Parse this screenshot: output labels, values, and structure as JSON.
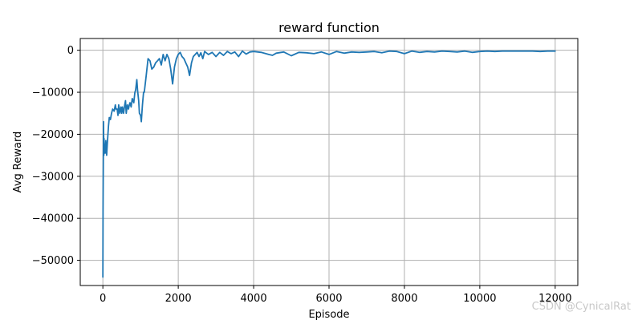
{
  "chart_data": {
    "type": "line",
    "title": "reward function",
    "xlabel": "Episode",
    "ylabel": "Avg Reward",
    "xlim": [
      -600,
      12600
    ],
    "ylim": [
      -56000,
      2800
    ],
    "xticks": [
      0,
      2000,
      4000,
      6000,
      8000,
      10000,
      12000
    ],
    "xtick_labels": [
      "0",
      "2000",
      "4000",
      "6000",
      "8000",
      "10000",
      "12000"
    ],
    "yticks": [
      0,
      -10000,
      -20000,
      -30000,
      -40000,
      -50000
    ],
    "ytick_labels": [
      "0",
      "−10000",
      "−20000",
      "−30000",
      "−40000",
      "−50000"
    ],
    "grid": true,
    "legend": false,
    "series": [
      {
        "color": "#1f77b4",
        "x": [
          0,
          5,
          10,
          18,
          25,
          30,
          40,
          50,
          60,
          80,
          100,
          120,
          150,
          170,
          200,
          230,
          260,
          300,
          330,
          350,
          380,
          400,
          420,
          450,
          480,
          500,
          520,
          550,
          580,
          600,
          620,
          650,
          680,
          700,
          720,
          750,
          780,
          800,
          820,
          850,
          870,
          900,
          920,
          950,
          970,
          1000,
          1020,
          1050,
          1080,
          1100,
          1150,
          1200,
          1250,
          1300,
          1350,
          1400,
          1450,
          1500,
          1550,
          1600,
          1650,
          1700,
          1750,
          1780,
          1800,
          1850,
          1900,
          1950,
          2000,
          2050,
          2100,
          2150,
          2200,
          2250,
          2300,
          2350,
          2400,
          2450,
          2500,
          2550,
          2600,
          2650,
          2700,
          2800,
          2900,
          3000,
          3100,
          3200,
          3300,
          3400,
          3500,
          3600,
          3700,
          3800,
          3900,
          4000,
          4200,
          4400,
          4500,
          4600,
          4800,
          5000,
          5200,
          5400,
          5600,
          5800,
          6000,
          6200,
          6400,
          6600,
          6800,
          7000,
          7200,
          7400,
          7600,
          7800,
          8000,
          8200,
          8400,
          8600,
          8800,
          9000,
          9200,
          9400,
          9600,
          9800,
          10000,
          10200,
          10400,
          10600,
          10800,
          11000,
          11200,
          11400,
          11600,
          11800,
          12000
        ],
        "y": [
          -54000,
          -38000,
          -28000,
          -17000,
          -25000,
          -21000,
          -24000,
          -23000,
          -24500,
          -21500,
          -25000,
          -22000,
          -18000,
          -16000,
          -16500,
          -15000,
          -14000,
          -14500,
          -13000,
          -14000,
          -14000,
          -15500,
          -13000,
          -15000,
          -13500,
          -15000,
          -13500,
          -15000,
          -13000,
          -12000,
          -15000,
          -13000,
          -14000,
          -13000,
          -12500,
          -13500,
          -11500,
          -12000,
          -12500,
          -10000,
          -9500,
          -7000,
          -9500,
          -12000,
          -15000,
          -15500,
          -17000,
          -13000,
          -10000,
          -10000,
          -6000,
          -2000,
          -2500,
          -4500,
          -4000,
          -3000,
          -2500,
          -2000,
          -3500,
          -1000,
          -2500,
          -1000,
          -2000,
          -3500,
          -4500,
          -8000,
          -4000,
          -2000,
          -1000,
          -500,
          -1500,
          -2000,
          -3000,
          -4000,
          -6000,
          -3000,
          -1500,
          -1000,
          -500,
          -1500,
          -600,
          -2000,
          -300,
          -1000,
          -500,
          -1500,
          -500,
          -1200,
          -300,
          -800,
          -400,
          -1500,
          -200,
          -900,
          -400,
          -300,
          -500,
          -1000,
          -1200,
          -700,
          -400,
          -1300,
          -500,
          -600,
          -800,
          -400,
          -1000,
          -300,
          -700,
          -400,
          -500,
          -400,
          -300,
          -600,
          -200,
          -300,
          -800,
          -200,
          -500,
          -300,
          -400,
          -200,
          -300,
          -400,
          -200,
          -500,
          -300,
          -200,
          -300,
          -200,
          -200,
          -200,
          -200,
          -200,
          -300,
          -200,
          -200
        ]
      }
    ]
  },
  "watermark": "CSDN @CynicalRat"
}
